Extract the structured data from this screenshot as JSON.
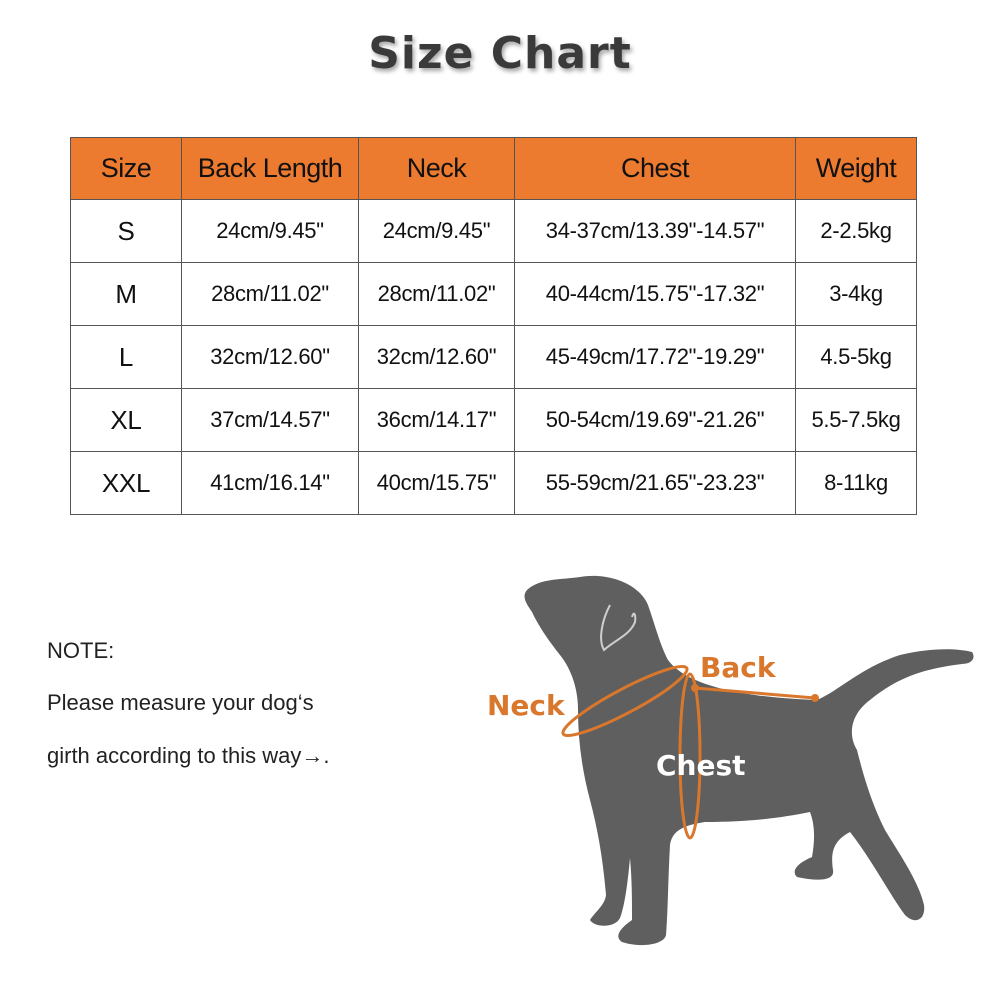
{
  "title": "Size Chart",
  "table": {
    "headers": [
      "Size",
      "Back Length",
      "Neck",
      "Chest",
      "Weight"
    ],
    "rows": [
      [
        "S",
        "24cm/9.45\"",
        "24cm/9.45\"",
        "34-37cm/13.39\"-14.57\"",
        "2-2.5kg"
      ],
      [
        "M",
        "28cm/11.02\"",
        "28cm/11.02\"",
        "40-44cm/15.75\"-17.32\"",
        "3-4kg"
      ],
      [
        "L",
        "32cm/12.60\"",
        "32cm/12.60\"",
        "45-49cm/17.72\"-19.29\"",
        "4.5-5kg"
      ],
      [
        "XL",
        "37cm/14.57\"",
        "36cm/14.17\"",
        "50-54cm/19.69\"-21.26\"",
        "5.5-7.5kg"
      ],
      [
        "XXL",
        "41cm/16.14\"",
        "40cm/15.75\"",
        "55-59cm/21.65\"-23.23\"",
        "8-11kg"
      ]
    ]
  },
  "note": {
    "heading": "NOTE:",
    "line1": "Please measure your dog‘s",
    "line2": "girth according to this way→."
  },
  "diagram": {
    "neck_label": "Neck",
    "back_label": "Back",
    "chest_label": "Chest"
  },
  "colors": {
    "header_bg": "#ec7a2f",
    "measure_orange": "#d9772c",
    "dog_gray": "#5f5f5f"
  }
}
